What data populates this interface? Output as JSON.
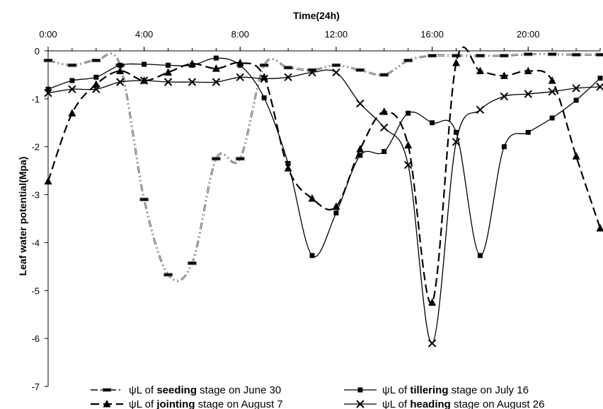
{
  "chart_data": {
    "type": "line",
    "title": "",
    "xlabel": "Time(24h)",
    "ylabel": "Leaf water potential(Mpa)",
    "xlim": [
      0,
      23
    ],
    "ylim": [
      -7,
      0
    ],
    "xtick_values": [
      0,
      4,
      8,
      12,
      16,
      20
    ],
    "xtick_labels": [
      "0:00",
      "4:00",
      "8:00",
      "12:00",
      "16:00",
      "20:00"
    ],
    "ytick_values": [
      0,
      -1,
      -2,
      -3,
      -4,
      -5,
      -6,
      -7
    ],
    "ytick_labels": [
      "0",
      "-1",
      "-2",
      "-3",
      "-4",
      "-5",
      "-6",
      "-7"
    ],
    "x_axis_position": "top",
    "grid": false,
    "legend_position": "bottom",
    "series": [
      {
        "name_parts": [
          "ψL of ",
          "seeding",
          " stage  on June 30"
        ],
        "style": "dashdotdot",
        "marker": "bar",
        "color": "#000000",
        "x": [
          0,
          1,
          2,
          3,
          4,
          5,
          6,
          7,
          8,
          9,
          10,
          11,
          12,
          13,
          14,
          15,
          16,
          17,
          18,
          19,
          20,
          21,
          22,
          23
        ],
        "y": [
          -0.2,
          -0.3,
          -0.2,
          -0.3,
          -3.1,
          -4.67,
          -4.43,
          -2.25,
          -2.25,
          -0.3,
          -0.35,
          -0.4,
          -0.3,
          -0.4,
          -0.5,
          -0.2,
          -0.1,
          -0.1,
          -0.1,
          -0.1,
          -0.07,
          -0.07,
          -0.08,
          -0.08
        ]
      },
      {
        "name_parts": [
          "ψL of ",
          "tillering",
          " stage on July 16"
        ],
        "style": "solid",
        "marker": "square",
        "color": "#000000",
        "x": [
          0,
          1,
          2,
          3,
          4,
          5,
          6,
          7,
          8,
          9,
          10,
          11,
          12,
          13,
          14,
          15,
          16,
          17,
          18,
          19,
          20,
          21,
          22,
          23
        ],
        "y": [
          -0.8,
          -0.62,
          -0.55,
          -0.3,
          -0.28,
          -0.3,
          -0.3,
          -0.15,
          -0.3,
          -0.98,
          -2.35,
          -4.27,
          -3.38,
          -2.18,
          -2.1,
          -1.3,
          -1.5,
          -1.7,
          -4.27,
          -2.0,
          -1.7,
          -1.4,
          -1.03,
          -0.57
        ]
      },
      {
        "name_parts": [
          "ψL of ",
          "jointing",
          " stage  on August 7"
        ],
        "style": "dashed",
        "marker": "triangle",
        "color": "#000000",
        "x": [
          0,
          1,
          2,
          3,
          4,
          5,
          6,
          7,
          8,
          9,
          10,
          11,
          12,
          13,
          14,
          15,
          16,
          17,
          18,
          19,
          20,
          21,
          22,
          23
        ],
        "y": [
          -2.72,
          -1.3,
          -0.7,
          -0.42,
          -0.62,
          -0.45,
          -0.27,
          -0.37,
          -0.25,
          -0.55,
          -2.45,
          -3.08,
          -3.25,
          -2.05,
          -1.27,
          -1.97,
          -5.25,
          -0.25,
          -0.42,
          -0.52,
          -0.42,
          -0.62,
          -2.2,
          -3.7
        ]
      },
      {
        "name_parts": [
          "ψL of ",
          "heading",
          " stage on August 26"
        ],
        "style": "solid",
        "marker": "x",
        "color": "#000000",
        "x": [
          0,
          1,
          2,
          3,
          4,
          5,
          6,
          7,
          8,
          9,
          10,
          11,
          12,
          13,
          14,
          15,
          16,
          17,
          18,
          19,
          20,
          21,
          22,
          23
        ],
        "y": [
          -0.88,
          -0.8,
          -0.8,
          -0.65,
          -0.62,
          -0.65,
          -0.65,
          -0.65,
          -0.55,
          -0.58,
          -0.55,
          -0.45,
          -0.45,
          -1.1,
          -1.6,
          -2.38,
          -6.1,
          -1.9,
          -1.23,
          -0.95,
          -0.9,
          -0.85,
          -0.78,
          -0.75
        ]
      }
    ]
  }
}
